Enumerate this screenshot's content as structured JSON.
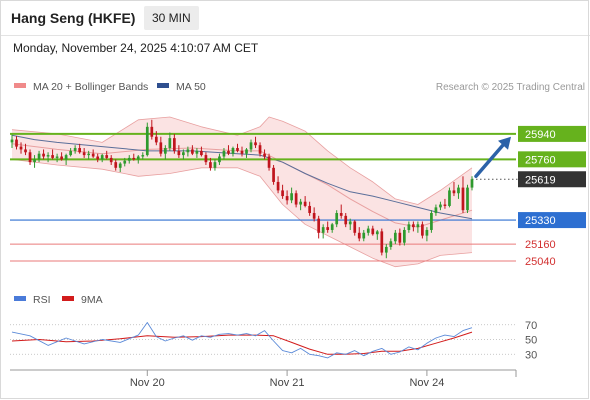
{
  "header": {
    "title": "Hang Seng (HKFE)",
    "timeframe": "30 MIN",
    "datetime": "Monday, November 24, 2025 4:10:07 AM CET"
  },
  "watermark": "Research © 2025 Trading Central",
  "colors": {
    "bull": "#2e9a2e",
    "bear": "#c0151d",
    "bollinger_line": "#e8a0a0",
    "bollinger_fill": "#fbe3e3",
    "ma50": "#5b6f9a",
    "resistance": "#66b21d",
    "pivot": "#2d6fd1",
    "support": "#e97a7a",
    "current": "#333333",
    "arrow": "#2c62a8",
    "rsi": "#5b8ad8",
    "rsi_ma": "#d21c1c"
  },
  "chart_data": [
    {
      "type": "candlestick",
      "title": "Hang Seng (HKFE)",
      "timeframe": "30 MIN",
      "legend": [
        {
          "label": "MA 20 + Bollinger Bands",
          "color": "#f08a8a"
        },
        {
          "label": "MA 50",
          "color": "#2f4f8f"
        }
      ],
      "x_tick_labels": [
        "Nov 20",
        "Nov 21",
        "Nov 24"
      ],
      "y_range": [
        24920,
        26180
      ],
      "levels": [
        {
          "value": 25940,
          "label": "25940",
          "kind": "resistance"
        },
        {
          "value": 25760,
          "label": "25760",
          "kind": "resistance"
        },
        {
          "value": 25619,
          "label": "25619",
          "kind": "current"
        },
        {
          "value": 25330,
          "label": "25330",
          "kind": "pivot"
        },
        {
          "value": 25160,
          "label": "25160",
          "kind": "support"
        },
        {
          "value": 25040,
          "label": "25040",
          "kind": "support"
        }
      ],
      "candles": [
        [
          25880,
          25935,
          25840,
          25900
        ],
        [
          25900,
          25925,
          25830,
          25850
        ],
        [
          25850,
          25880,
          25800,
          25830
        ],
        [
          25830,
          25870,
          25790,
          25810
        ],
        [
          25810,
          25830,
          25720,
          25740
        ],
        [
          25740,
          25790,
          25700,
          25760
        ],
        [
          25760,
          25820,
          25740,
          25800
        ],
        [
          25800,
          25830,
          25760,
          25780
        ],
        [
          25780,
          25810,
          25740,
          25790
        ],
        [
          25790,
          25830,
          25760,
          25770
        ],
        [
          25770,
          25800,
          25740,
          25780
        ],
        [
          25780,
          25810,
          25750,
          25760
        ],
        [
          25760,
          25800,
          25720,
          25790
        ],
        [
          25790,
          25840,
          25780,
          25820
        ],
        [
          25820,
          25860,
          25800,
          25840
        ],
        [
          25840,
          25870,
          25800,
          25810
        ],
        [
          25810,
          25840,
          25770,
          25790
        ],
        [
          25790,
          25820,
          25760,
          25800
        ],
        [
          25800,
          25830,
          25770,
          25780
        ],
        [
          25780,
          25800,
          25740,
          25760
        ],
        [
          25760,
          25800,
          25740,
          25790
        ],
        [
          25790,
          25820,
          25760,
          25770
        ],
        [
          25770,
          25790,
          25720,
          25740
        ],
        [
          25740,
          25760,
          25680,
          25700
        ],
        [
          25700,
          25740,
          25670,
          25730
        ],
        [
          25730,
          25770,
          25710,
          25750
        ],
        [
          25750,
          25790,
          25730,
          25770
        ],
        [
          25770,
          25800,
          25750,
          25760
        ],
        [
          25760,
          25790,
          25730,
          25780
        ],
        [
          25780,
          25810,
          25760,
          25790
        ],
        [
          25790,
          26020,
          25780,
          25990
        ],
        [
          25990,
          26040,
          25900,
          25920
        ],
        [
          25920,
          25960,
          25860,
          25880
        ],
        [
          25880,
          25920,
          25780,
          25800
        ],
        [
          25800,
          25860,
          25760,
          25840
        ],
        [
          25840,
          25950,
          25820,
          25910
        ],
        [
          25910,
          25940,
          25800,
          25820
        ],
        [
          25820,
          25860,
          25770,
          25790
        ],
        [
          25790,
          25830,
          25760,
          25810
        ],
        [
          25810,
          25850,
          25780,
          25830
        ],
        [
          25830,
          25860,
          25790,
          25800
        ],
        [
          25800,
          25840,
          25770,
          25820
        ],
        [
          25820,
          25850,
          25780,
          25790
        ],
        [
          25790,
          25810,
          25720,
          25740
        ],
        [
          25740,
          25770,
          25680,
          25700
        ],
        [
          25700,
          25760,
          25680,
          25740
        ],
        [
          25740,
          25800,
          25720,
          25780
        ],
        [
          25780,
          25840,
          25760,
          25820
        ],
        [
          25820,
          25860,
          25790,
          25800
        ],
        [
          25800,
          25850,
          25780,
          25840
        ],
        [
          25840,
          25870,
          25810,
          25820
        ],
        [
          25820,
          25850,
          25780,
          25800
        ],
        [
          25800,
          25840,
          25770,
          25830
        ],
        [
          25830,
          25900,
          25810,
          25880
        ],
        [
          25880,
          25920,
          25840,
          25860
        ],
        [
          25860,
          25880,
          25780,
          25800
        ],
        [
          25800,
          25830,
          25760,
          25780
        ],
        [
          25780,
          25800,
          25680,
          25700
        ],
        [
          25700,
          25720,
          25580,
          25600
        ],
        [
          25600,
          25640,
          25520,
          25540
        ],
        [
          25540,
          25580,
          25480,
          25500
        ],
        [
          25500,
          25540,
          25440,
          25470
        ],
        [
          25470,
          25560,
          25450,
          25520
        ],
        [
          25520,
          25540,
          25420,
          25440
        ],
        [
          25440,
          25480,
          25400,
          25460
        ],
        [
          25460,
          25500,
          25420,
          25430
        ],
        [
          25430,
          25460,
          25360,
          25380
        ],
        [
          25380,
          25420,
          25320,
          25340
        ],
        [
          25340,
          25360,
          25200,
          25240
        ],
        [
          25240,
          25300,
          25200,
          25280
        ],
        [
          25280,
          25320,
          25240,
          25260
        ],
        [
          25260,
          25310,
          25240,
          25300
        ],
        [
          25300,
          25400,
          25280,
          25380
        ],
        [
          25380,
          25440,
          25340,
          25360
        ],
        [
          25360,
          25380,
          25280,
          25300
        ],
        [
          25300,
          25340,
          25260,
          25320
        ],
        [
          25320,
          25330,
          25220,
          25240
        ],
        [
          25240,
          25280,
          25180,
          25200
        ],
        [
          25200,
          25260,
          25180,
          25240
        ],
        [
          25240,
          25290,
          25220,
          25270
        ],
        [
          25270,
          25290,
          25220,
          25230
        ],
        [
          25230,
          25260,
          25190,
          25250
        ],
        [
          25250,
          25270,
          25080,
          25100
        ],
        [
          25100,
          25160,
          25060,
          25140
        ],
        [
          25140,
          25200,
          25120,
          25180
        ],
        [
          25180,
          25260,
          25160,
          25240
        ],
        [
          25240,
          25270,
          25150,
          25170
        ],
        [
          25170,
          25280,
          25150,
          25260
        ],
        [
          25260,
          25320,
          25240,
          25300
        ],
        [
          25300,
          25320,
          25250,
          25280
        ],
        [
          25280,
          25320,
          25240,
          25300
        ],
        [
          25300,
          25320,
          25200,
          25220
        ],
        [
          25220,
          25280,
          25180,
          25260
        ],
        [
          25260,
          25400,
          25240,
          25380
        ],
        [
          25380,
          25440,
          25360,
          25420
        ],
        [
          25420,
          25460,
          25400,
          25440
        ],
        [
          25440,
          25480,
          25410,
          25430
        ],
        [
          25430,
          25560,
          25420,
          25540
        ],
        [
          25540,
          25600,
          25500,
          25520
        ],
        [
          25520,
          25580,
          25480,
          25560
        ],
        [
          25560,
          25640,
          25380,
          25400
        ],
        [
          25400,
          25580,
          25380,
          25560
        ],
        [
          25560,
          25640,
          25540,
          25619
        ]
      ],
      "ma20": [
        [
          0,
          25870
        ],
        [
          10,
          25830
        ],
        [
          20,
          25800
        ],
        [
          30,
          25830
        ],
        [
          40,
          25840
        ],
        [
          50,
          25820
        ],
        [
          55,
          25820
        ],
        [
          60,
          25740
        ],
        [
          65,
          25660
        ],
        [
          70,
          25580
        ],
        [
          75,
          25480
        ],
        [
          80,
          25390
        ],
        [
          85,
          25310
        ],
        [
          90,
          25280
        ],
        [
          95,
          25330
        ],
        [
          102,
          25400
        ]
      ],
      "bollinger_upper": [
        [
          0,
          25970
        ],
        [
          10,
          25940
        ],
        [
          20,
          25880
        ],
        [
          28,
          26040
        ],
        [
          35,
          26060
        ],
        [
          42,
          25990
        ],
        [
          50,
          25930
        ],
        [
          55,
          25990
        ],
        [
          57,
          26060
        ],
        [
          60,
          26030
        ],
        [
          65,
          25960
        ],
        [
          70,
          25820
        ],
        [
          75,
          25700
        ],
        [
          80,
          25600
        ],
        [
          85,
          25480
        ],
        [
          90,
          25440
        ],
        [
          95,
          25540
        ],
        [
          102,
          25700
        ]
      ],
      "bollinger_lower": [
        [
          0,
          25760
        ],
        [
          10,
          25720
        ],
        [
          20,
          25690
        ],
        [
          28,
          25640
        ],
        [
          35,
          25660
        ],
        [
          42,
          25700
        ],
        [
          50,
          25700
        ],
        [
          55,
          25640
        ],
        [
          60,
          25440
        ],
        [
          65,
          25300
        ],
        [
          70,
          25220
        ],
        [
          75,
          25140
        ],
        [
          80,
          25060
        ],
        [
          85,
          25000
        ],
        [
          90,
          25020
        ],
        [
          95,
          25080
        ],
        [
          102,
          25100
        ]
      ],
      "ma50": [
        [
          0,
          25930
        ],
        [
          5,
          25900
        ],
        [
          10,
          25880
        ],
        [
          20,
          25850
        ],
        [
          30,
          25820
        ],
        [
          40,
          25820
        ],
        [
          50,
          25800
        ],
        [
          55,
          25790
        ],
        [
          60,
          25740
        ],
        [
          65,
          25660
        ],
        [
          70,
          25590
        ],
        [
          75,
          25530
        ],
        [
          80,
          25500
        ],
        [
          85,
          25460
        ],
        [
          90,
          25420
        ],
        [
          95,
          25380
        ],
        [
          102,
          25340
        ]
      ]
    },
    {
      "type": "line",
      "title": "",
      "legend": [
        {
          "label": "RSI",
          "color": "#4a7bd9"
        },
        {
          "label": "9MA",
          "color": "#d21c1c"
        }
      ],
      "y_ticks": [
        70,
        50,
        30
      ],
      "y_range": [
        10,
        90
      ],
      "rsi": [
        [
          0,
          60
        ],
        [
          4,
          55
        ],
        [
          8,
          42
        ],
        [
          12,
          52
        ],
        [
          16,
          44
        ],
        [
          20,
          50
        ],
        [
          24,
          46
        ],
        [
          28,
          56
        ],
        [
          30,
          73
        ],
        [
          32,
          54
        ],
        [
          34,
          48
        ],
        [
          36,
          52
        ],
        [
          38,
          55
        ],
        [
          40,
          49
        ],
        [
          42,
          55
        ],
        [
          44,
          53
        ],
        [
          46,
          57
        ],
        [
          48,
          58
        ],
        [
          50,
          56
        ],
        [
          52,
          58
        ],
        [
          54,
          55
        ],
        [
          56,
          62
        ],
        [
          58,
          48
        ],
        [
          60,
          35
        ],
        [
          62,
          32
        ],
        [
          64,
          38
        ],
        [
          66,
          30
        ],
        [
          68,
          28
        ],
        [
          70,
          25
        ],
        [
          72,
          32
        ],
        [
          74,
          30
        ],
        [
          76,
          35
        ],
        [
          78,
          28
        ],
        [
          80,
          34
        ],
        [
          82,
          38
        ],
        [
          84,
          30
        ],
        [
          86,
          33
        ],
        [
          88,
          40
        ],
        [
          90,
          36
        ],
        [
          92,
          45
        ],
        [
          94,
          52
        ],
        [
          96,
          56
        ],
        [
          98,
          54
        ],
        [
          100,
          62
        ],
        [
          102,
          66
        ]
      ],
      "rsi_ma": [
        [
          0,
          48
        ],
        [
          6,
          50
        ],
        [
          12,
          47
        ],
        [
          18,
          48
        ],
        [
          24,
          51
        ],
        [
          30,
          55
        ],
        [
          36,
          53
        ],
        [
          42,
          54
        ],
        [
          48,
          56
        ],
        [
          54,
          56
        ],
        [
          58,
          55
        ],
        [
          62,
          46
        ],
        [
          66,
          37
        ],
        [
          70,
          30
        ],
        [
          74,
          30
        ],
        [
          78,
          31
        ],
        [
          82,
          34
        ],
        [
          86,
          34
        ],
        [
          90,
          38
        ],
        [
          94,
          45
        ],
        [
          98,
          52
        ],
        [
          102,
          60
        ]
      ]
    }
  ]
}
